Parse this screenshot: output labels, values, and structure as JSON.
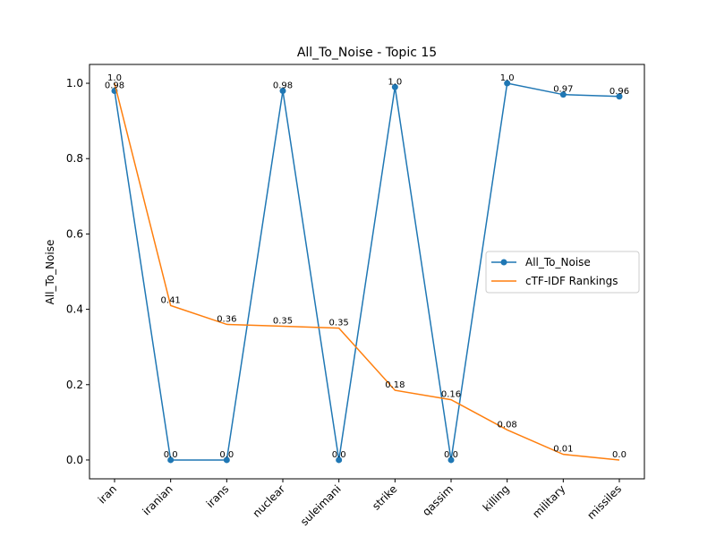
{
  "chart_data": {
    "type": "line",
    "title": "All_To_Noise - Topic 15",
    "xlabel": "",
    "ylabel": "All_To_Noise",
    "categories": [
      "iran",
      "iranian",
      "irans",
      "nuclear",
      "suleimani",
      "strike",
      "qassim",
      "killing",
      "military",
      "missiles"
    ],
    "series": [
      {
        "name": "All_To_Noise",
        "color": "#1f77b4",
        "marker": "circle",
        "values": [
          0.98,
          0.0,
          0.0,
          0.98,
          0.0,
          0.99,
          0.0,
          1.0,
          0.97,
          0.965
        ],
        "labels": [
          "0.98",
          "0.0",
          "0.0",
          "0.98",
          "0.0",
          "1.0",
          "0.0",
          "1.0",
          "0.97",
          "0.96"
        ]
      },
      {
        "name": "cTF-IDF Rankings",
        "color": "#ff7f0e",
        "marker": "none",
        "values": [
          1.0,
          0.41,
          0.36,
          0.355,
          0.35,
          0.185,
          0.16,
          0.08,
          0.015,
          0.0
        ],
        "labels": [
          "1.0",
          "0.41",
          "0.36",
          "0.35",
          "0.35",
          "0.18",
          "0.16",
          "0.08",
          "0.01",
          "0.0"
        ]
      }
    ],
    "yticks": [
      "0.0",
      "0.2",
      "0.4",
      "0.6",
      "0.8",
      "1.0"
    ],
    "ylim": [
      -0.05,
      1.05
    ],
    "grid": false,
    "legend_position": "center-right"
  }
}
